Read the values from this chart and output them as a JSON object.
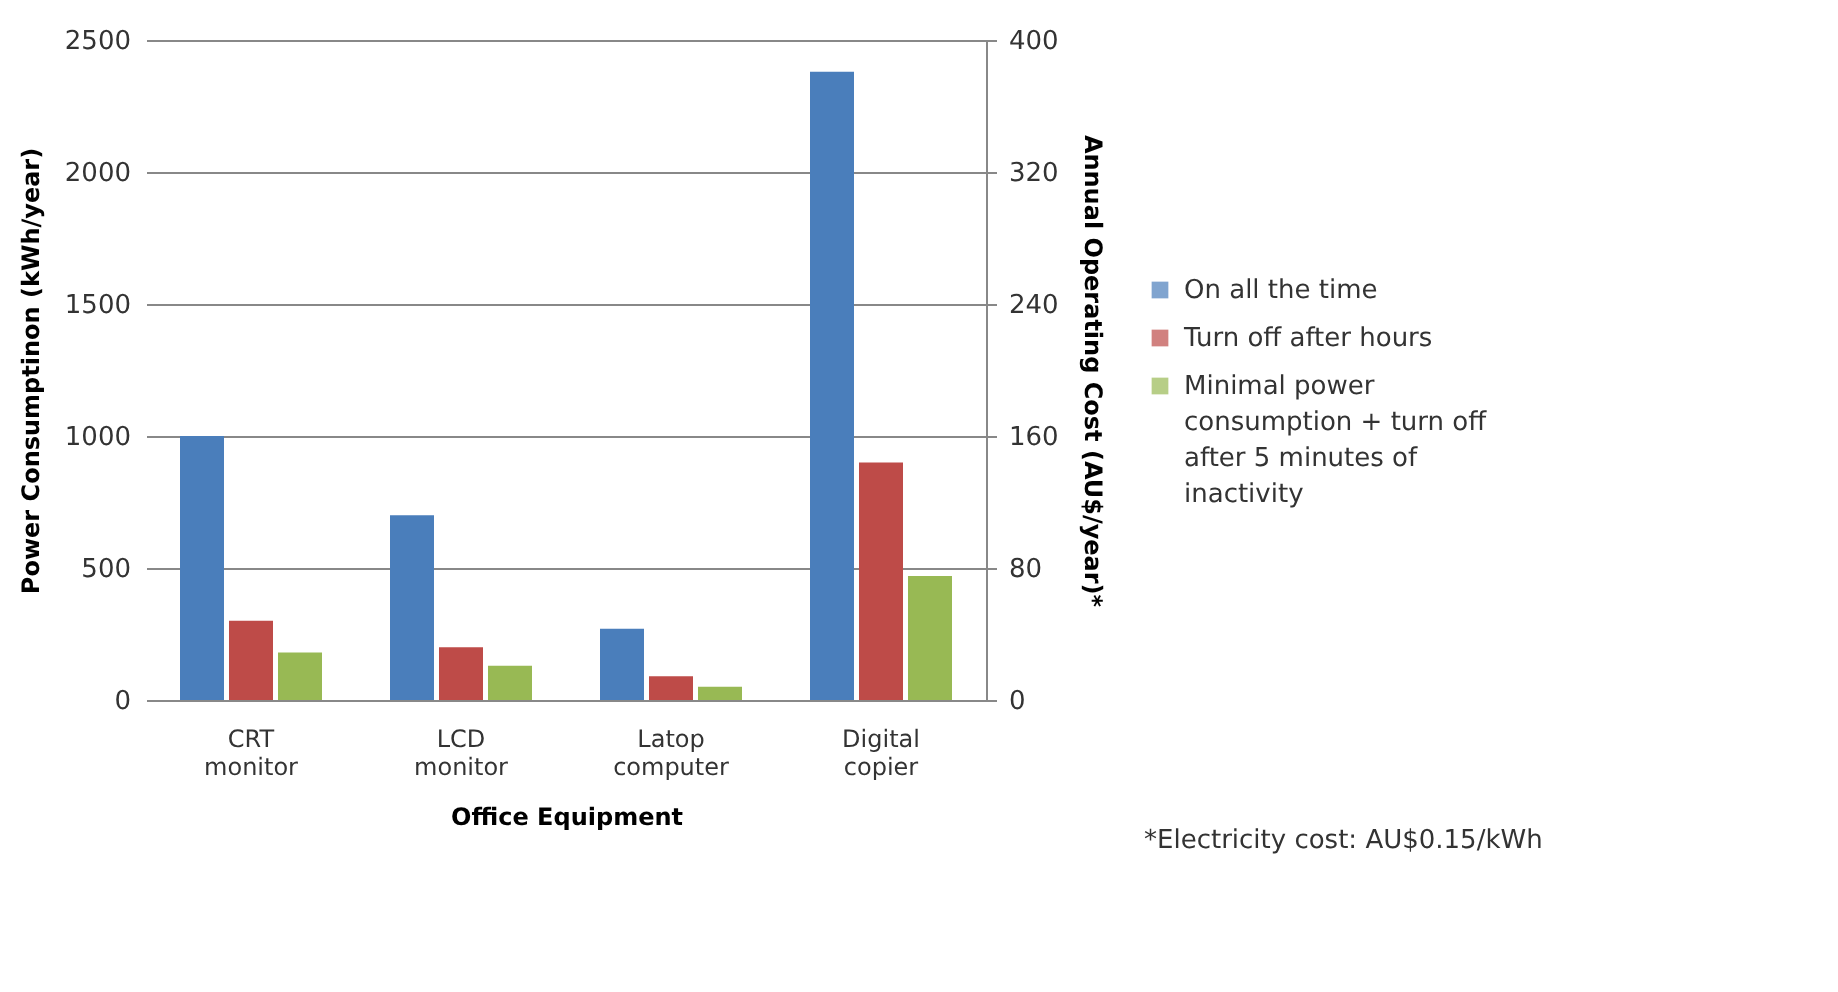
{
  "chart_data": {
    "type": "bar",
    "xlabel": "Office Equipment",
    "ylabel": "Power Consumptinon (kWh/year)",
    "y2label": "Annual Operating Cost (AU$/year)*",
    "categories": [
      "CRT monitor",
      "LCD monitor",
      "Latop computer",
      "Digital copier"
    ],
    "series": [
      {
        "name": "On all the time",
        "color": "#4a7ebb",
        "values": [
          1000,
          700,
          270,
          2380
        ]
      },
      {
        "name": "Turn off after hours",
        "color": "#be4b48",
        "values": [
          300,
          200,
          90,
          900
        ]
      },
      {
        "name": "Minimal power consumption + turn off after 5 minutes of inactivity",
        "color": "#98b954",
        "values": [
          180,
          130,
          50,
          470
        ]
      }
    ],
    "ylim": [
      0,
      2500
    ],
    "yticks": [
      0,
      500,
      1000,
      1500,
      2000,
      2500
    ],
    "y2lim": [
      0,
      400
    ],
    "y2ticks": [
      0,
      80,
      160,
      240,
      320,
      400
    ],
    "grid": "y",
    "legend": "right",
    "annotations": [
      "*Electricity cost: AU$0.15/kWh"
    ]
  }
}
